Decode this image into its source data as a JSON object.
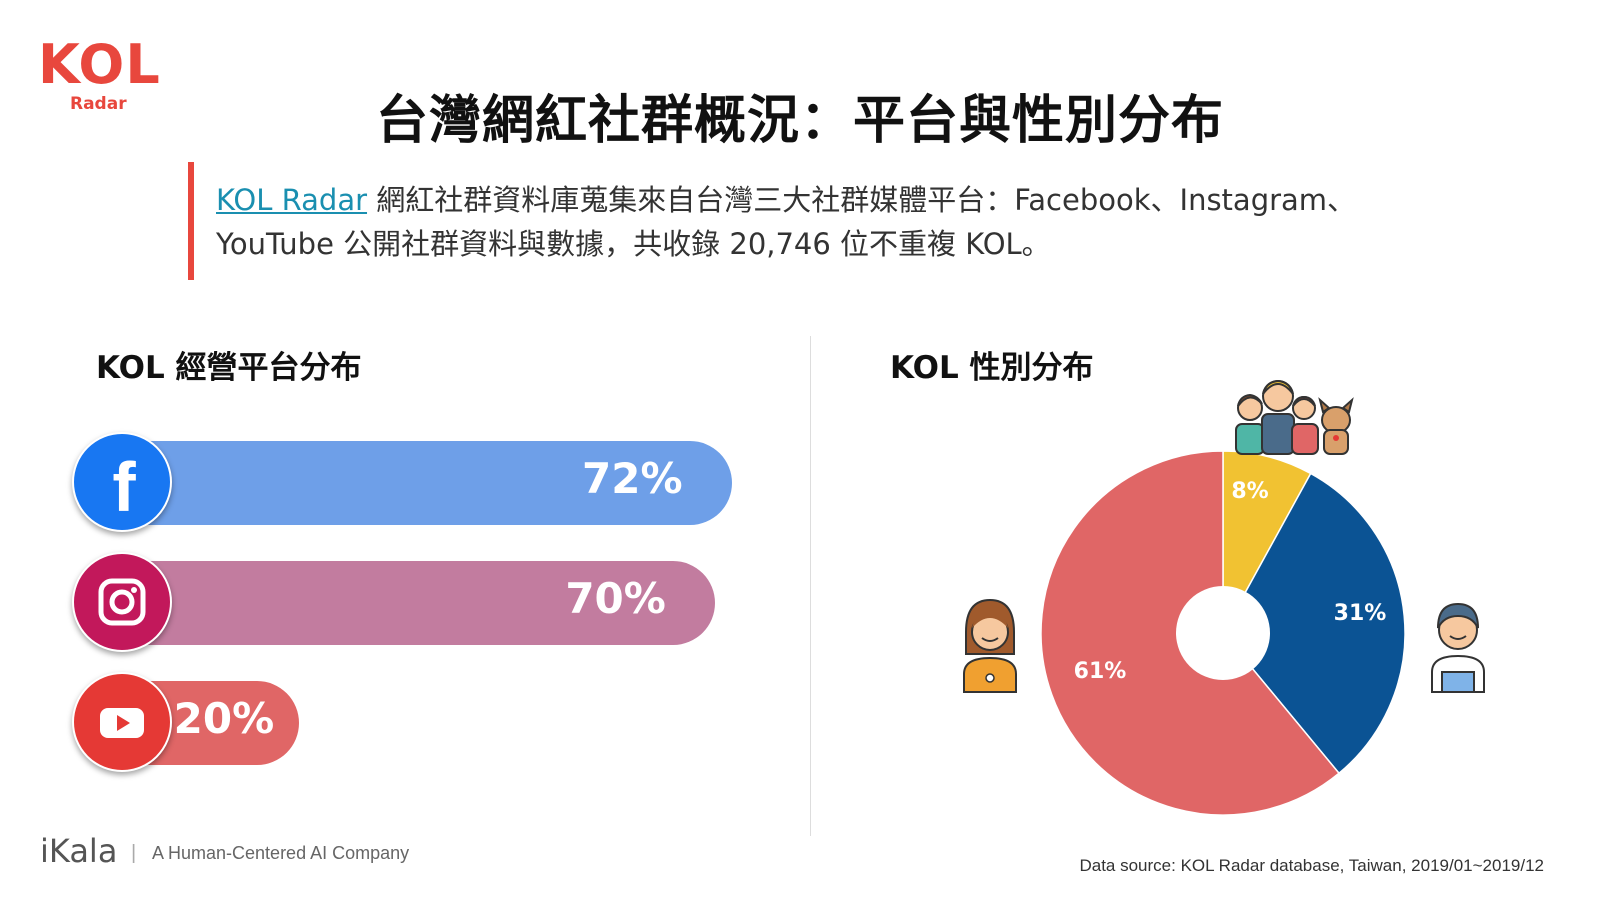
{
  "logo": {
    "kol": "KOL",
    "radar": "Radar"
  },
  "title": "台灣網紅社群概況：平台與性別分布",
  "description": {
    "link_text": "KOL Radar",
    "text": " 網紅社群資料庫蒐集來自台灣三大社群媒體平台：Facebook、Instagram、YouTube 公開社群資料與數據，共收錄 20,746 位不重複 KOL。"
  },
  "colors": {
    "accent": "#e8473d",
    "facebook_bar": "#6e9fe8",
    "instagram_bar": "#c27c9f",
    "youtube_bar": "#e06666",
    "pie_female": "#e06666",
    "pie_male": "#0b5394",
    "pie_group": "#f1c232"
  },
  "platform_section": {
    "title": "KOL 經營平台分布"
  },
  "gender_section": {
    "title": "KOL 性別分布"
  },
  "chart_data": [
    {
      "type": "bar",
      "orientation": "horizontal",
      "categories": [
        "Facebook",
        "Instagram",
        "YouTube"
      ],
      "icons": [
        "facebook-icon",
        "instagram-icon",
        "youtube-icon"
      ],
      "values": [
        72,
        70,
        20
      ],
      "labels": [
        "72%",
        "70%",
        "20%"
      ],
      "unit": "%"
    },
    {
      "type": "pie",
      "categories": [
        "Group",
        "Male",
        "Female"
      ],
      "icons": [
        "group-icon",
        "male-icon",
        "female-icon"
      ],
      "values": [
        8,
        31,
        61
      ],
      "labels": [
        "8%",
        "31%",
        "61%"
      ],
      "unit": "%"
    }
  ],
  "footer": {
    "brand": "iKala",
    "separator": "|",
    "tagline": "A Human-Centered AI Company",
    "source": "Data source: KOL Radar database, Taiwan, 2019/01~2019/12"
  }
}
